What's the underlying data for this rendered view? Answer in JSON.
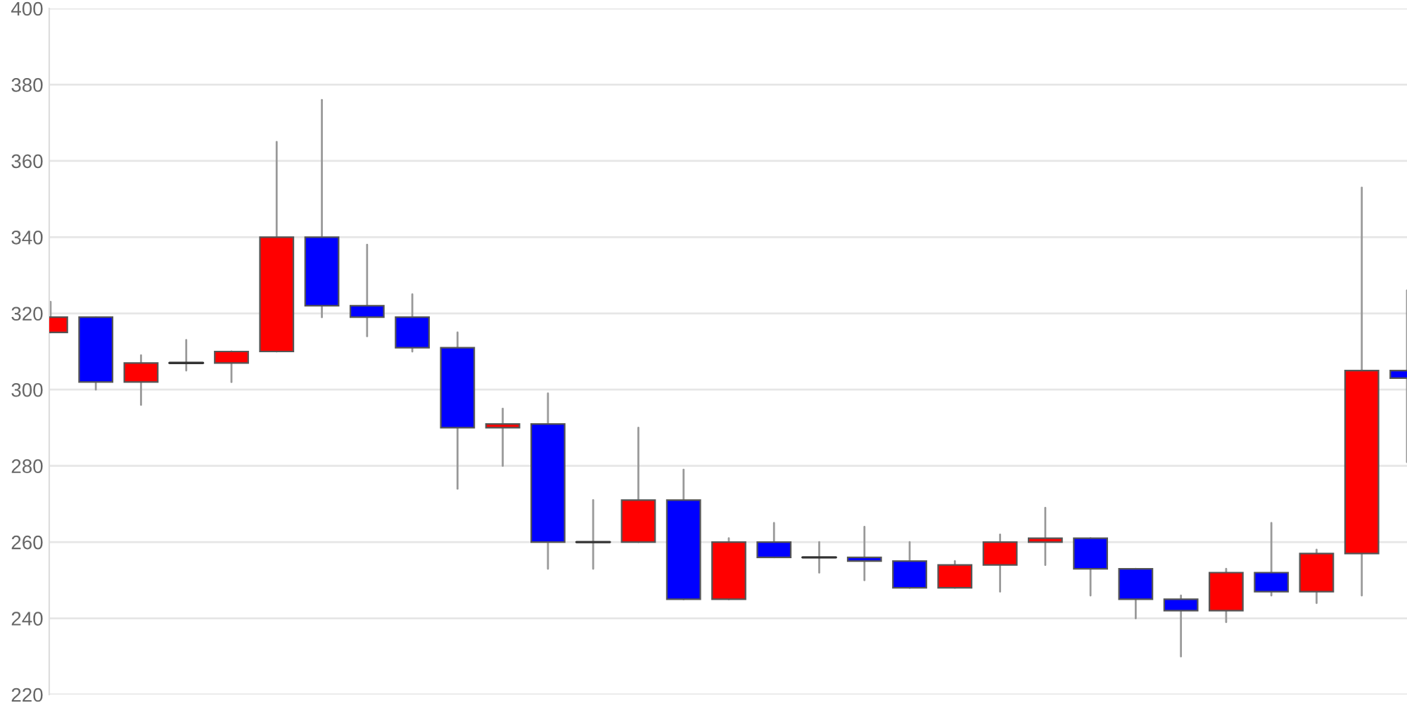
{
  "chart_data": {
    "type": "candlestick",
    "categories": [
      null,
      null,
      null,
      null,
      null,
      null,
      null,
      null,
      null,
      null,
      null,
      null,
      null,
      null,
      null,
      null,
      null,
      null,
      null,
      null,
      null,
      null,
      null,
      null,
      null,
      null,
      null,
      null,
      null,
      null,
      null
    ],
    "ohlc": [
      [
        315,
        323,
        315,
        319
      ],
      [
        319,
        319,
        300,
        302
      ],
      [
        302,
        309,
        296,
        307
      ],
      [
        307,
        313,
        305,
        307
      ],
      [
        307,
        310,
        302,
        310
      ],
      [
        310,
        365,
        310,
        340
      ],
      [
        340,
        376,
        319,
        322
      ],
      [
        322,
        338,
        314,
        319
      ],
      [
        319,
        325,
        310,
        311
      ],
      [
        311,
        315,
        274,
        290
      ],
      [
        290,
        295,
        280,
        291
      ],
      [
        291,
        299,
        253,
        260
      ],
      [
        260,
        271,
        253,
        260
      ],
      [
        260,
        290,
        260,
        271
      ],
      [
        271,
        279,
        245,
        245
      ],
      [
        245,
        261,
        245,
        260
      ],
      [
        260,
        265,
        256,
        256
      ],
      [
        256,
        260,
        252,
        256
      ],
      [
        256,
        264,
        250,
        255
      ],
      [
        255,
        260,
        248,
        248
      ],
      [
        248,
        255,
        248,
        254
      ],
      [
        254,
        262,
        247,
        260
      ],
      [
        260,
        269,
        254,
        261
      ],
      [
        261,
        261,
        246,
        253
      ],
      [
        253,
        253,
        240,
        245
      ],
      [
        245,
        246,
        230,
        242
      ],
      [
        242,
        253,
        239,
        252
      ],
      [
        252,
        265,
        246,
        247
      ],
      [
        247,
        258,
        244,
        257
      ],
      [
        257,
        353,
        246,
        305
      ],
      [
        305,
        326,
        281,
        303
      ]
    ],
    "colors": [
      "#ff0000",
      "#0000ff",
      "#ff0000",
      "#333333",
      "#ff0000",
      "#ff0000",
      "#0000ff",
      "#0000ff",
      "#0000ff",
      "#0000ff",
      "#ff0000",
      "#0000ff",
      "#333333",
      "#ff0000",
      "#0000ff",
      "#ff0000",
      "#0000ff",
      "#333333",
      "#0000ff",
      "#0000ff",
      "#ff0000",
      "#ff0000",
      "#ff0000",
      "#0000ff",
      "#0000ff",
      "#0000ff",
      "#ff0000",
      "#0000ff",
      "#ff0000",
      "#ff0000",
      "#0000ff"
    ],
    "ylim": [
      220,
      400
    ],
    "yticks": [
      220,
      240,
      260,
      280,
      300,
      320,
      340,
      360,
      380,
      400
    ],
    "grid": "y",
    "tick_labels": "y"
  }
}
